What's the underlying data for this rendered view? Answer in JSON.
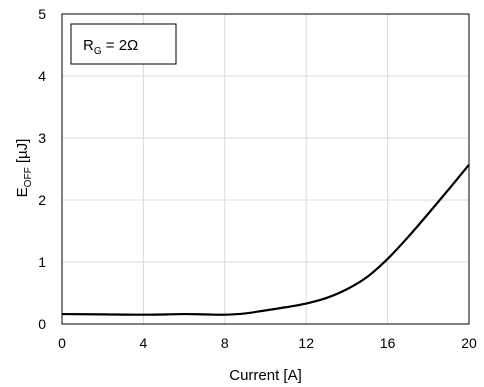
{
  "chart_data": {
    "type": "line",
    "xlabel": "Current [A]",
    "ylabel": {
      "main": "E",
      "sub": "OFF",
      "unit": " [µJ]"
    },
    "xlim": [
      0,
      20
    ],
    "ylim": [
      0,
      5
    ],
    "xticks": [
      0,
      4,
      8,
      12,
      16,
      20
    ],
    "yticks": [
      0,
      1,
      2,
      3,
      4,
      5
    ],
    "grid": true,
    "annotation": {
      "main": "R",
      "sub": "G",
      "rest": " = 2Ω"
    },
    "series": [
      {
        "color": "#000000",
        "x": [
          0,
          2,
          4,
          6,
          7,
          8,
          9,
          10,
          11,
          12,
          13,
          14,
          15,
          16,
          17,
          18,
          19,
          20
        ],
        "y": [
          0.16,
          0.155,
          0.15,
          0.16,
          0.155,
          0.15,
          0.17,
          0.22,
          0.27,
          0.33,
          0.42,
          0.56,
          0.76,
          1.05,
          1.4,
          1.78,
          2.17,
          2.57
        ]
      }
    ]
  }
}
